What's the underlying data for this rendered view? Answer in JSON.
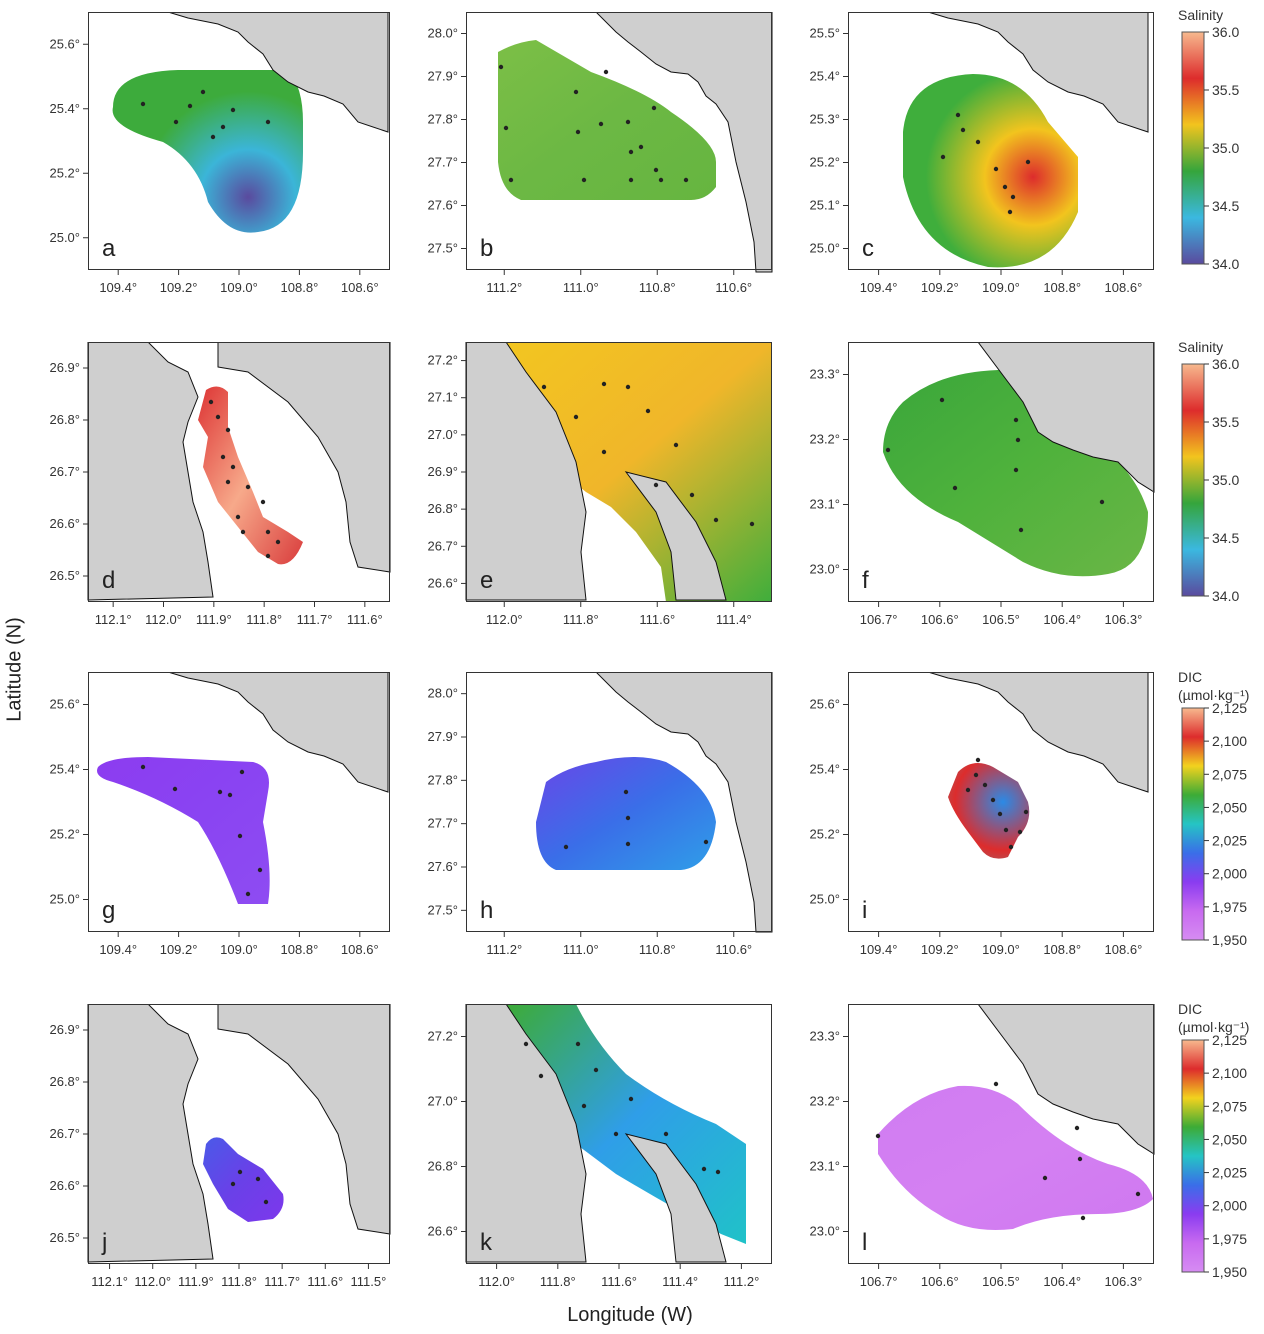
{
  "axes": {
    "x_title": "Longitude (W)",
    "y_title": "Latitude (N)"
  },
  "colorbars": [
    {
      "title_lines": [
        "Salinity"
      ],
      "ticks": [
        "36.0",
        "35.5",
        "35.0",
        "34.5",
        "34.0"
      ],
      "colors": [
        "#f7b98e",
        "#dd2c2c",
        "#f2c41e",
        "#35a53c",
        "#3bb8e0",
        "#5a4a9e"
      ]
    },
    {
      "title_lines": [
        "Salinity"
      ],
      "ticks": [
        "36.0",
        "35.5",
        "35.0",
        "34.5",
        "34.0"
      ],
      "colors": [
        "#f7b98e",
        "#dd2c2c",
        "#f2c41e",
        "#35a53c",
        "#3bb8e0",
        "#5a4a9e"
      ]
    },
    {
      "title_lines": [
        "DIC",
        "(µmol·kg⁻¹)"
      ],
      "ticks": [
        "2,125",
        "2,100",
        "2,075",
        "2,050",
        "2,025",
        "2,000",
        "1,975",
        "1,950"
      ],
      "colors": [
        "#f7b98e",
        "#dd2c2c",
        "#f2d21e",
        "#3dab36",
        "#25c4c4",
        "#3a6ee8",
        "#8a3cf0",
        "#c86af0",
        "#d68cf2"
      ]
    },
    {
      "title_lines": [
        "DIC",
        "(µmol·kg⁻¹)"
      ],
      "ticks": [
        "2,125",
        "2,100",
        "2,075",
        "2,050",
        "2,025",
        "2,000",
        "1,975",
        "1,950"
      ],
      "colors": [
        "#f7b98e",
        "#dd2c2c",
        "#f2d21e",
        "#3dab36",
        "#25c4c4",
        "#3a6ee8",
        "#8a3cf0",
        "#c86af0",
        "#d68cf2"
      ]
    }
  ],
  "panels": [
    {
      "letter": "a",
      "xticks": [
        "109.4°",
        "109.2°",
        "109.0°",
        "108.8°",
        "108.6°"
      ],
      "yticks": [
        "25.6°",
        "25.4°",
        "25.2°",
        "25.0°"
      ],
      "field_colors": [
        "#3dab3c",
        "#3bb5d8",
        "#5a4a9e"
      ],
      "stations": 8
    },
    {
      "letter": "b",
      "xticks": [
        "111.2°",
        "111.0°",
        "110.8°",
        "110.6°"
      ],
      "yticks": [
        "28.0°",
        "27.9°",
        "27.8°",
        "27.7°",
        "27.6°",
        "27.5°"
      ],
      "field_colors": [
        "#7cbf46",
        "#6cb844",
        "#66b540"
      ],
      "stations": 16
    },
    {
      "letter": "c",
      "xticks": [
        "109.4°",
        "109.2°",
        "109.0°",
        "108.8°",
        "108.6°"
      ],
      "yticks": [
        "25.5°",
        "25.4°",
        "25.3°",
        "25.2°",
        "25.1°",
        "25.0°"
      ],
      "field_colors": [
        "#3fae3c",
        "#f2c41e",
        "#dd2c2c"
      ],
      "stations": 9
    },
    {
      "letter": "d",
      "xticks": [
        "112.1°",
        "112.0°",
        "111.9°",
        "111.8°",
        "111.7°",
        "111.6°"
      ],
      "yticks": [
        "26.9°",
        "26.8°",
        "26.7°",
        "26.6°",
        "26.5°"
      ],
      "field_colors": [
        "#dd3434",
        "#f7a98a",
        "#d93c3c"
      ],
      "stations": 13
    },
    {
      "letter": "e",
      "xticks": [
        "112.0°",
        "111.8°",
        "111.6°",
        "111.4°"
      ],
      "yticks": [
        "27.2°",
        "27.1°",
        "27.0°",
        "26.9°",
        "26.8°",
        "26.7°",
        "26.6°"
      ],
      "field_colors": [
        "#f3c81f",
        "#f0b62a",
        "#3fae3c"
      ],
      "stations": 11
    },
    {
      "letter": "f",
      "xticks": [
        "106.7°",
        "106.6°",
        "106.5°",
        "106.4°",
        "106.3°"
      ],
      "yticks": [
        "23.3°",
        "23.2°",
        "23.1°",
        "23.0°"
      ],
      "field_colors": [
        "#3aa63b",
        "#4fb23c",
        "#6ab646"
      ],
      "stations": 8
    },
    {
      "letter": "g",
      "xticks": [
        "109.4°",
        "109.2°",
        "109.0°",
        "108.8°",
        "108.6°"
      ],
      "yticks": [
        "25.6°",
        "25.4°",
        "25.2°",
        "25.0°"
      ],
      "field_colors": [
        "#8c3cf0",
        "#8a44f2",
        "#8e4cf2"
      ],
      "stations": 8
    },
    {
      "letter": "h",
      "xticks": [
        "111.2°",
        "111.0°",
        "110.8°",
        "110.6°"
      ],
      "yticks": [
        "28.0°",
        "27.9°",
        "27.8°",
        "27.7°",
        "27.6°",
        "27.5°"
      ],
      "field_colors": [
        "#6a46e8",
        "#3a6ee8",
        "#2f9ee8"
      ],
      "stations": 5
    },
    {
      "letter": "i",
      "xticks": [
        "109.4°",
        "109.2°",
        "109.0°",
        "108.8°",
        "108.6°"
      ],
      "yticks": [
        "25.6°",
        "25.4°",
        "25.2°",
        "25.0°"
      ],
      "field_colors": [
        "#2fc0d0",
        "#dd2c2c",
        "#2b8ae6"
      ],
      "stations": 10
    },
    {
      "letter": "j",
      "xticks": [
        "112.1°",
        "112.0°",
        "111.9°",
        "111.8°",
        "111.7°",
        "111.6°",
        "111.5°"
      ],
      "yticks": [
        "26.9°",
        "26.8°",
        "26.7°",
        "26.6°",
        "26.5°"
      ],
      "field_colors": [
        "#4a5ae8",
        "#6a40e8",
        "#7d38ec"
      ],
      "stations": 4
    },
    {
      "letter": "k",
      "xticks": [
        "112.0°",
        "111.8°",
        "111.6°",
        "111.4°",
        "111.2°"
      ],
      "yticks": [
        "27.2°",
        "27.0°",
        "26.8°",
        "26.6°"
      ],
      "field_colors": [
        "#3dab36",
        "#2f9ee8",
        "#20c2c8"
      ],
      "stations": 10
    },
    {
      "letter": "l",
      "xticks": [
        "106.7°",
        "106.6°",
        "106.5°",
        "106.4°",
        "106.3°"
      ],
      "yticks": [
        "23.3°",
        "23.2°",
        "23.1°",
        "23.0°"
      ],
      "field_colors": [
        "#d07cf2",
        "#d480f2",
        "#cf78f0"
      ],
      "stations": 7
    }
  ]
}
